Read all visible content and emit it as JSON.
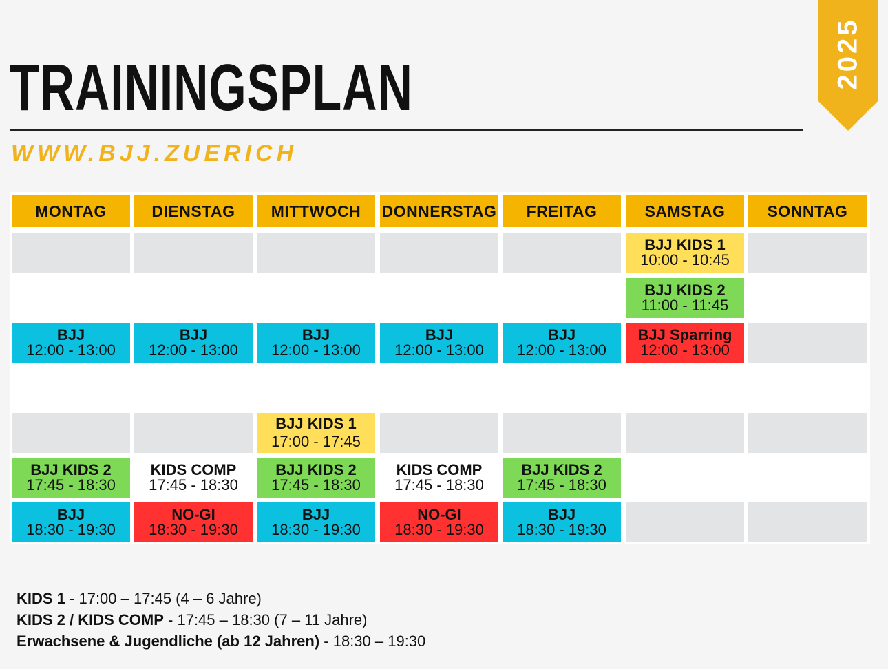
{
  "header": {
    "title": "TRAININGSPLAN",
    "website": "WWW.BJJ.ZUERICH",
    "year": "2025"
  },
  "days": [
    "MONTAG",
    "DIENSTAG",
    "MITTWOCH",
    "DONNERSTAG",
    "FREITAG",
    "SAMSTAG",
    "SONNTAG"
  ],
  "schedule": {
    "sat_kids1": {
      "title": "BJJ KIDS 1",
      "time": "10:00 - 10:45"
    },
    "sat_kids2": {
      "title": "BJJ KIDS 2",
      "time": "11:00 - 11:45"
    },
    "mon_noon": {
      "title": "BJJ",
      "time": "12:00 - 13:00"
    },
    "tue_noon": {
      "title": "BJJ",
      "time": "12:00 - 13:00"
    },
    "wed_noon": {
      "title": "BJJ",
      "time": "12:00 - 13:00"
    },
    "thu_noon": {
      "title": "BJJ",
      "time": "12:00 - 13:00"
    },
    "fri_noon": {
      "title": "BJJ",
      "time": "12:00 - 13:00"
    },
    "sat_noon": {
      "title": "BJJ Sparring",
      "time": "12:00 - 13:00"
    },
    "wed_kids1": {
      "title": "BJJ KIDS 1",
      "time": "17:00 - 17:45"
    },
    "mon_kids2": {
      "title": "BJJ KIDS 2",
      "time": "17:45 - 18:30"
    },
    "tue_comp": {
      "title": "KIDS COMP",
      "time": "17:45 - 18:30"
    },
    "wed_kids2": {
      "title": "BJJ KIDS 2",
      "time": "17:45 - 18:30"
    },
    "thu_comp": {
      "title": "KIDS COMP",
      "time": "17:45 - 18:30"
    },
    "fri_kids2": {
      "title": "BJJ KIDS 2",
      "time": "17:45 - 18:30"
    },
    "mon_eve": {
      "title": "BJJ",
      "time": "18:30 - 19:30"
    },
    "tue_eve": {
      "title": "NO-GI",
      "time": "18:30 - 19:30"
    },
    "wed_eve": {
      "title": "BJJ",
      "time": "18:30 - 19:30"
    },
    "thu_eve": {
      "title": "NO-GI",
      "time": "18:30 - 19:30"
    },
    "fri_eve": {
      "title": "BJJ",
      "time": "18:30 - 19:30"
    }
  },
  "legend": [
    {
      "label": "KIDS 1",
      "detail": " - 17:00 – 17:45 (4 – 6 Jahre)"
    },
    {
      "label": "KIDS 2 / KIDS COMP",
      "detail": " - 17:45 – 18:30 (7 – 11 Jahre)"
    },
    {
      "label": "Erwachsene & Jugendliche (ab 12 Jahren)",
      "detail": " - 18:30 – 19:30"
    }
  ],
  "colors": {
    "accent": "#f5b400",
    "bjj": "#0cc0df",
    "nogi_sparring": "#ff3131",
    "kids2": "#7ed957",
    "kids1": "#ffde59",
    "empty": "#e3e4e6"
  }
}
